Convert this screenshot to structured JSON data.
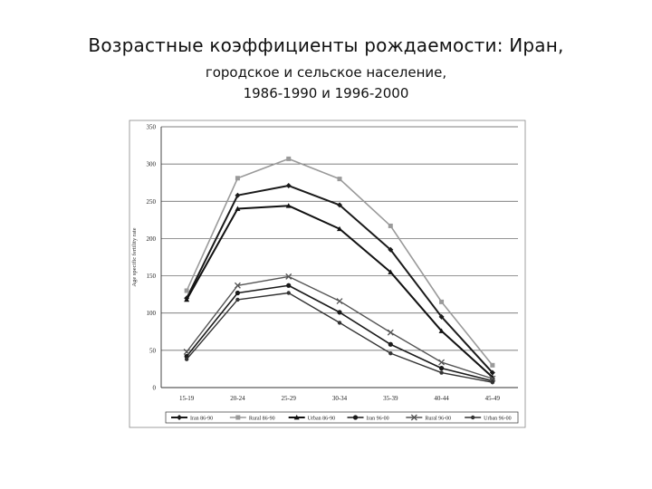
{
  "slide": {
    "title": "Возрастные коэффициенты рождаемости: Иран,",
    "subtitle_line1": "городское и сельское население,",
    "subtitle_line2": "1986-1990 и 1996-2000"
  },
  "chart_data": {
    "type": "line",
    "ylabel": "Age specific fertility rate",
    "xlabel": "",
    "categories": [
      "15-19",
      "20-24",
      "25-29",
      "30-34",
      "35-39",
      "40-44",
      "45-49"
    ],
    "ylim": [
      0,
      350
    ],
    "yticks": [
      0,
      50,
      100,
      150,
      200,
      250,
      300,
      350
    ],
    "grid": true,
    "legend_position": "bottom",
    "series": [
      {
        "name": "Iran 86-90",
        "marker": "diamond",
        "color": "#1a1a1a",
        "width": 2.0,
        "values": [
          120,
          258,
          271,
          245,
          185,
          95,
          20
        ]
      },
      {
        "name": "Rural 86-90",
        "marker": "square",
        "color": "#9a9a9a",
        "width": 1.6,
        "values": [
          130,
          281,
          307,
          280,
          217,
          115,
          30
        ]
      },
      {
        "name": "Urban 86-90",
        "marker": "triangle",
        "color": "#111111",
        "width": 2.0,
        "values": [
          118,
          240,
          244,
          213,
          155,
          76,
          14
        ]
      },
      {
        "name": "Iran 96-00",
        "marker": "circle",
        "color": "#1a1a1a",
        "width": 1.6,
        "values": [
          42,
          127,
          137,
          101,
          58,
          26,
          9
        ]
      },
      {
        "name": "Rural 96-00",
        "marker": "x",
        "color": "#555555",
        "width": 1.4,
        "values": [
          48,
          137,
          149,
          116,
          74,
          34,
          12
        ]
      },
      {
        "name": "Urban 96-00",
        "marker": "dot",
        "color": "#333333",
        "width": 1.4,
        "values": [
          38,
          118,
          127,
          87,
          46,
          20,
          7
        ]
      }
    ]
  }
}
